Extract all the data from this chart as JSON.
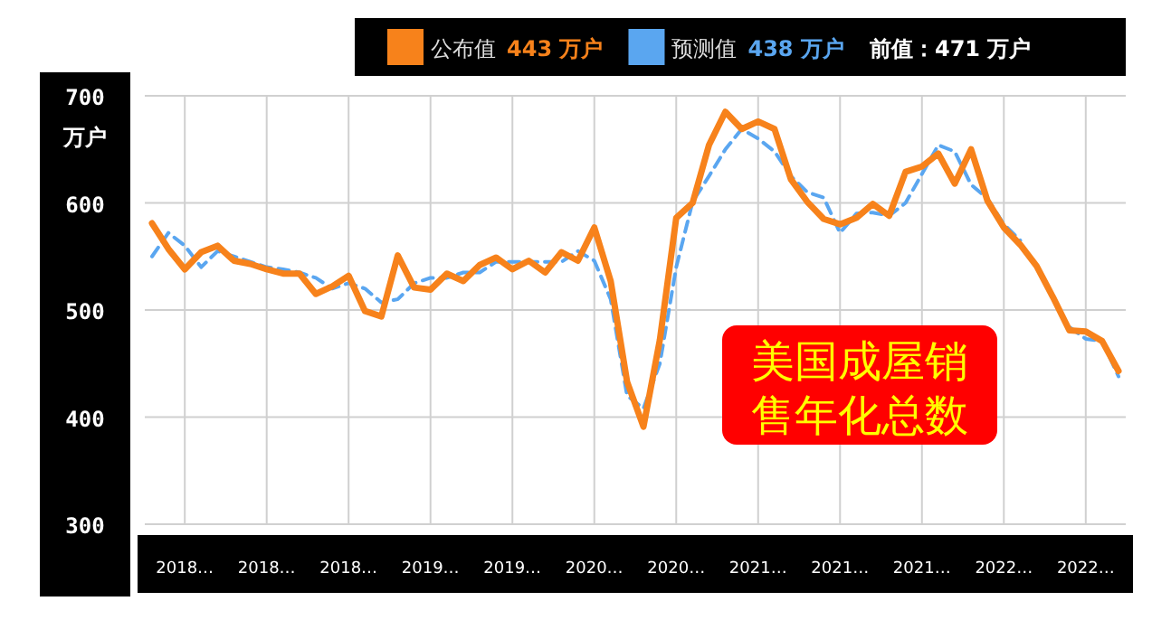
{
  "chart_data": {
    "type": "line",
    "ylabel": "万户",
    "categories": [
      null,
      null,
      "2018…",
      null,
      null,
      null,
      null,
      "2018…",
      null,
      null,
      null,
      null,
      "2018…",
      null,
      null,
      null,
      null,
      "2019…",
      null,
      null,
      null,
      null,
      "2019…",
      null,
      null,
      null,
      null,
      "2020…",
      null,
      null,
      null,
      null,
      "2020…",
      null,
      null,
      null,
      null,
      "2021…",
      null,
      null,
      null,
      null,
      "2021…",
      null,
      null,
      null,
      null,
      "2021…",
      null,
      null,
      null,
      null,
      "2022…",
      null,
      null,
      null,
      null,
      "2022…",
      null,
      null
    ],
    "series": [
      {
        "name": "公布值",
        "color": "#f7821b",
        "line_style": "solid",
        "values": [
          581,
          557,
          538,
          554,
          560,
          546,
          543,
          538,
          534,
          534,
          515,
          522,
          532,
          499,
          494,
          551,
          521,
          519,
          534,
          527,
          542,
          549,
          538,
          546,
          535,
          554,
          546,
          577,
          527,
          433,
          391,
          472,
          586,
          600,
          654,
          685,
          669,
          676,
          669,
          622,
          601,
          585,
          580,
          586,
          599,
          588,
          629,
          634,
          646,
          618,
          650,
          602,
          577,
          561,
          541,
          512,
          481,
          480,
          471,
          443
        ]
      },
      {
        "name": "预测值",
        "color": "#5aa6f0",
        "line_style": "dashed",
        "values": [
          550,
          572,
          560,
          540,
          555,
          550,
          545,
          540,
          538,
          535,
          530,
          520,
          525,
          520,
          507,
          510,
          525,
          530,
          530,
          535,
          535,
          545,
          545,
          545,
          545,
          545,
          555,
          546,
          510,
          420,
          408,
          450,
          540,
          601,
          625,
          650,
          669,
          660,
          648,
          625,
          610,
          605,
          572,
          590,
          591,
          588,
          600,
          627,
          654,
          648,
          617,
          604,
          580,
          565,
          null,
          null,
          484,
          473,
          471,
          438
        ]
      }
    ],
    "ylim": [
      300,
      700
    ],
    "yticks": [
      300,
      400,
      500,
      600,
      700
    ],
    "grid": true,
    "legend": "top",
    "annotations": [
      "443 万户",
      "438 万户",
      "前值：471 万户",
      "美国成屋销售年化总数"
    ]
  }
}
